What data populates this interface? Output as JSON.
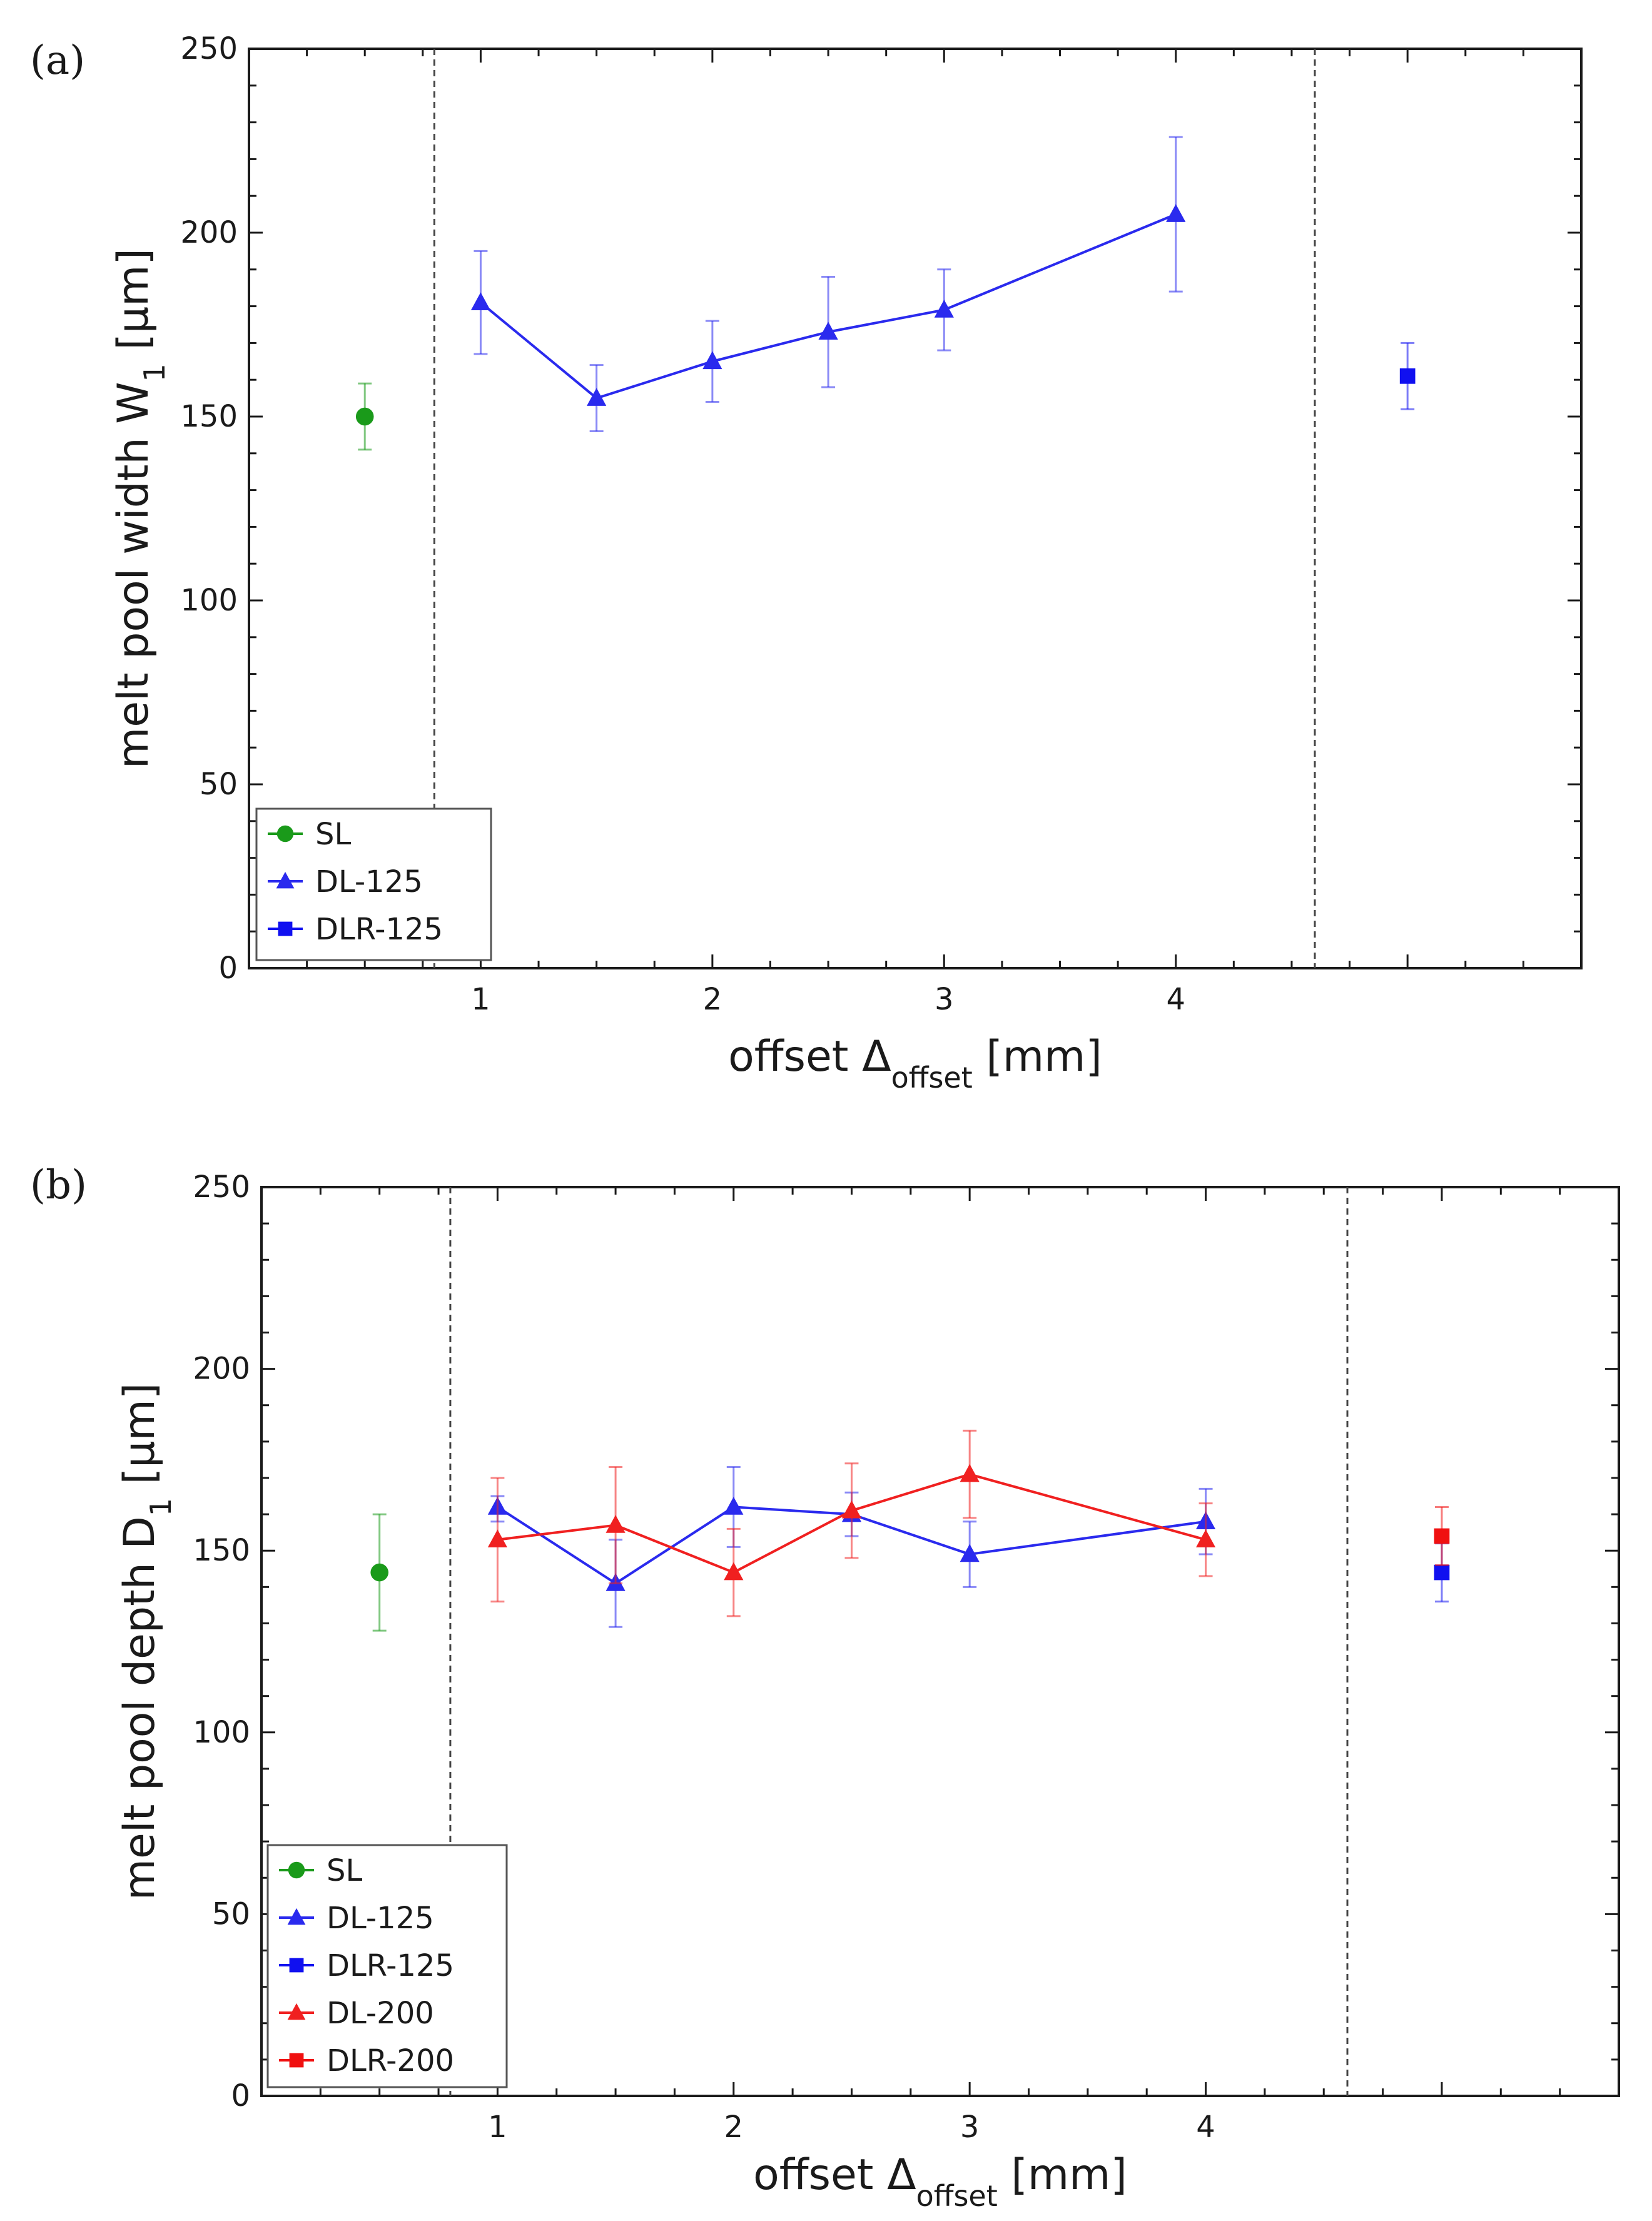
{
  "chart_data": [
    {
      "type": "line",
      "panel_label": "(a)",
      "ylabel": "melt pool width W",
      "ylabel_sub": "1",
      "ylabel_unit": " [µm]",
      "xlabel": "offset Δ",
      "xlabel_sub": "offset",
      "xlabel_unit": " [mm]",
      "ylim": [
        0,
        250
      ],
      "xlim": [
        0,
        5.75
      ],
      "yticks": [
        0,
        50,
        100,
        150,
        200,
        250
      ],
      "xticks": [
        1,
        2,
        3,
        4
      ],
      "divider_x": [
        0.8,
        4.6
      ],
      "grid": false,
      "legend_position": "bottom-left",
      "series": [
        {
          "name": "SL",
          "color": "#1a9a1a",
          "marker": "circle",
          "connect": false,
          "points": [
            {
              "x": 0.5,
              "y": 150,
              "err_low": 141,
              "err_high": 159
            }
          ]
        },
        {
          "name": "DL-125",
          "color": "#2a2aee",
          "marker": "triangle",
          "connect": true,
          "points": [
            {
              "x": 1.0,
              "y": 181,
              "err_low": 167,
              "err_high": 195
            },
            {
              "x": 1.5,
              "y": 155,
              "err_low": 146,
              "err_high": 164
            },
            {
              "x": 2.0,
              "y": 165,
              "err_low": 154,
              "err_high": 176
            },
            {
              "x": 2.5,
              "y": 173,
              "err_low": 158,
              "err_high": 188
            },
            {
              "x": 3.0,
              "y": 179,
              "err_low": 168,
              "err_high": 190
            },
            {
              "x": 4.0,
              "y": 205,
              "err_low": 184,
              "err_high": 226
            }
          ]
        },
        {
          "name": "DLR-125",
          "color": "#1010f0",
          "marker": "square",
          "connect": false,
          "points": [
            {
              "x": 5.0,
              "y": 161,
              "err_low": 152,
              "err_high": 170
            }
          ]
        }
      ]
    },
    {
      "type": "line",
      "panel_label": "(b)",
      "ylabel": "melt pool depth D",
      "ylabel_sub": "1",
      "ylabel_unit": " [µm]",
      "xlabel": "offset Δ",
      "xlabel_sub": "offset",
      "xlabel_unit": " [mm]",
      "ylim": [
        0,
        250
      ],
      "xlim": [
        0,
        5.75
      ],
      "yticks": [
        0,
        50,
        100,
        150,
        200,
        250
      ],
      "xticks": [
        1,
        2,
        3,
        4
      ],
      "divider_x": [
        0.8,
        4.6
      ],
      "grid": false,
      "legend_position": "bottom-left",
      "series": [
        {
          "name": "SL",
          "color": "#1a9a1a",
          "marker": "circle",
          "connect": false,
          "points": [
            {
              "x": 0.5,
              "y": 144,
              "err_low": 128,
              "err_high": 160
            }
          ]
        },
        {
          "name": "DL-125",
          "color": "#2a2aee",
          "marker": "triangle",
          "connect": true,
          "points": [
            {
              "x": 1.0,
              "y": 162,
              "err_low": 158,
              "err_high": 165
            },
            {
              "x": 1.5,
              "y": 141,
              "err_low": 129,
              "err_high": 153
            },
            {
              "x": 2.0,
              "y": 162,
              "err_low": 151,
              "err_high": 173
            },
            {
              "x": 2.5,
              "y": 160,
              "err_low": 154,
              "err_high": 166
            },
            {
              "x": 3.0,
              "y": 149,
              "err_low": 140,
              "err_high": 158
            },
            {
              "x": 4.0,
              "y": 158,
              "err_low": 149,
              "err_high": 167
            }
          ]
        },
        {
          "name": "DLR-125",
          "color": "#1010f0",
          "marker": "square",
          "connect": false,
          "points": [
            {
              "x": 5.0,
              "y": 144,
              "err_low": 136,
              "err_high": 152
            }
          ]
        },
        {
          "name": "DL-200",
          "color": "#f02020",
          "marker": "triangle",
          "connect": true,
          "points": [
            {
              "x": 1.0,
              "y": 153,
              "err_low": 136,
              "err_high": 170
            },
            {
              "x": 1.5,
              "y": 157,
              "err_low": 141,
              "err_high": 173
            },
            {
              "x": 2.0,
              "y": 144,
              "err_low": 132,
              "err_high": 156
            },
            {
              "x": 2.5,
              "y": 161,
              "err_low": 148,
              "err_high": 174
            },
            {
              "x": 3.0,
              "y": 171,
              "err_low": 159,
              "err_high": 183
            },
            {
              "x": 4.0,
              "y": 153,
              "err_low": 143,
              "err_high": 163
            }
          ]
        },
        {
          "name": "DLR-200",
          "color": "#f01010",
          "marker": "square",
          "connect": false,
          "points": [
            {
              "x": 5.0,
              "y": 154,
              "err_low": 146,
              "err_high": 162
            }
          ]
        }
      ]
    }
  ]
}
